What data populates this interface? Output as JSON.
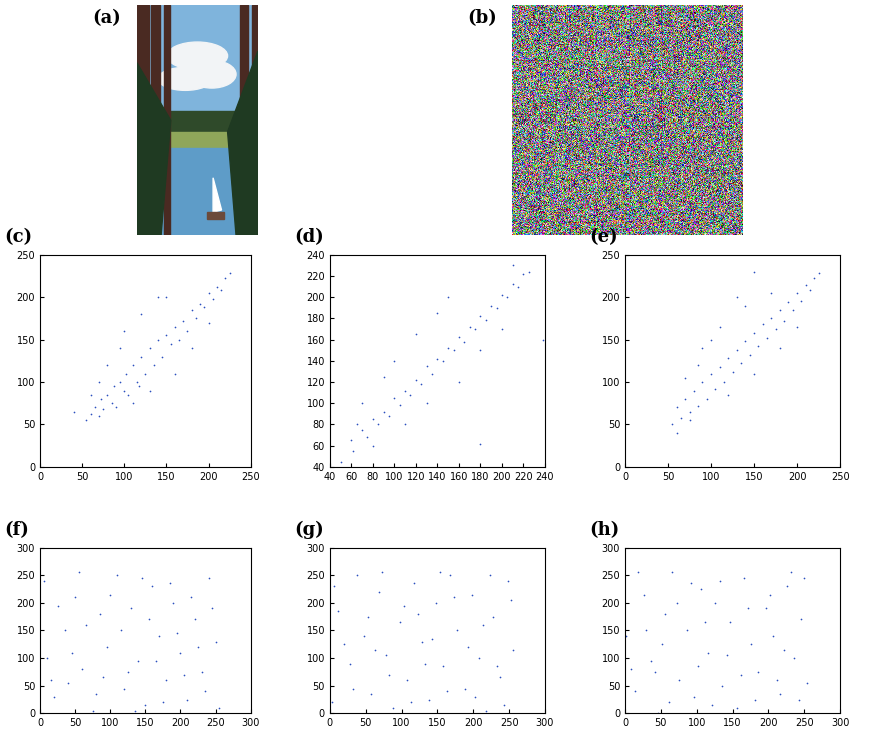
{
  "chart_data": [
    {
      "type": "photo",
      "title": "(a)"
    },
    {
      "type": "noise",
      "title": "(b)"
    },
    {
      "type": "scatter",
      "title": "(c)",
      "color": "#2b4fbf",
      "marker": "dot",
      "xlim": [
        0,
        250
      ],
      "ylim": [
        0,
        250
      ],
      "xticks": [
        0,
        50,
        100,
        150,
        200,
        250
      ],
      "yticks": [
        0,
        50,
        100,
        150,
        200,
        250
      ],
      "x": [
        60,
        65,
        70,
        72,
        75,
        80,
        85,
        88,
        90,
        95,
        100,
        102,
        105,
        110,
        115,
        118,
        120,
        125,
        130,
        135,
        140,
        145,
        150,
        155,
        160,
        165,
        170,
        175,
        180,
        185,
        190,
        195,
        200,
        205,
        210,
        215,
        220,
        225,
        80,
        95,
        120,
        150,
        130,
        160,
        180,
        110,
        70,
        55,
        140,
        200,
        100,
        60,
        40
      ],
      "values": [
        62,
        70,
        60,
        80,
        68,
        85,
        75,
        95,
        70,
        100,
        90,
        110,
        85,
        120,
        100,
        95,
        130,
        110,
        140,
        120,
        150,
        130,
        155,
        145,
        165,
        150,
        172,
        160,
        185,
        175,
        192,
        188,
        205,
        198,
        212,
        208,
        222,
        228,
        120,
        140,
        180,
        200,
        90,
        110,
        140,
        75,
        100,
        55,
        200,
        170,
        160,
        85,
        65
      ]
    },
    {
      "type": "scatter",
      "title": "(d)",
      "color": "#2b4fbf",
      "marker": "dot",
      "xlim": [
        40,
        240
      ],
      "ylim": [
        40,
        240
      ],
      "xticks": [
        40,
        60,
        80,
        100,
        120,
        140,
        160,
        180,
        200,
        220,
        240
      ],
      "yticks": [
        40,
        60,
        80,
        100,
        120,
        140,
        160,
        180,
        200,
        220,
        240
      ],
      "x": [
        50,
        60,
        62,
        70,
        75,
        80,
        85,
        90,
        95,
        100,
        105,
        110,
        115,
        120,
        125,
        130,
        135,
        140,
        145,
        150,
        155,
        160,
        165,
        170,
        175,
        180,
        185,
        190,
        195,
        200,
        205,
        210,
        215,
        220,
        225,
        100,
        120,
        90,
        150,
        160,
        180,
        130,
        70,
        110,
        200,
        210,
        140,
        238,
        180,
        80,
        65
      ],
      "values": [
        45,
        65,
        55,
        75,
        68,
        85,
        80,
        92,
        88,
        105,
        98,
        112,
        108,
        122,
        118,
        135,
        128,
        142,
        140,
        152,
        150,
        162,
        158,
        172,
        170,
        182,
        178,
        192,
        190,
        202,
        200,
        212,
        210,
        222,
        224,
        140,
        165,
        125,
        200,
        120,
        150,
        100,
        100,
        80,
        170,
        230,
        185,
        160,
        62,
        60,
        80
      ]
    },
    {
      "type": "scatter",
      "title": "(e)",
      "color": "#2b4fbf",
      "marker": "dot",
      "xlim": [
        0,
        250
      ],
      "ylim": [
        0,
        250
      ],
      "xticks": [
        0,
        50,
        100,
        150,
        200,
        250
      ],
      "yticks": [
        0,
        50,
        100,
        150,
        200,
        250
      ],
      "x": [
        55,
        60,
        65,
        70,
        75,
        80,
        85,
        90,
        95,
        100,
        105,
        110,
        115,
        120,
        125,
        130,
        135,
        140,
        145,
        150,
        155,
        160,
        165,
        170,
        175,
        180,
        185,
        190,
        195,
        200,
        205,
        210,
        215,
        220,
        225,
        90,
        110,
        130,
        150,
        120,
        150,
        180,
        70,
        60,
        100,
        200,
        170,
        85,
        75,
        140
      ],
      "values": [
        50,
        70,
        58,
        80,
        65,
        90,
        72,
        100,
        80,
        110,
        92,
        118,
        100,
        128,
        112,
        138,
        122,
        148,
        132,
        158,
        142,
        168,
        152,
        175,
        162,
        185,
        172,
        194,
        185,
        205,
        196,
        214,
        208,
        222,
        228,
        140,
        165,
        200,
        230,
        85,
        110,
        140,
        105,
        40,
        150,
        165,
        205,
        120,
        55,
        190
      ]
    },
    {
      "type": "scatter",
      "title": "(f)",
      "color": "#2b4fbf",
      "marker": "dot",
      "xlim": [
        0,
        300
      ],
      "ylim": [
        0,
        300
      ],
      "xticks": [
        0,
        50,
        100,
        150,
        200,
        250,
        300
      ],
      "yticks": [
        0,
        50,
        100,
        150,
        200,
        250,
        300
      ],
      "x": [
        5,
        20,
        35,
        50,
        60,
        75,
        85,
        95,
        110,
        120,
        130,
        140,
        150,
        160,
        170,
        180,
        190,
        200,
        210,
        220,
        230,
        240,
        250,
        255,
        10,
        25,
        40,
        55,
        65,
        80,
        100,
        115,
        125,
        135,
        145,
        155,
        165,
        175,
        185,
        195,
        205,
        215,
        225,
        235,
        245,
        15,
        45,
        90
      ],
      "values": [
        240,
        30,
        150,
        210,
        80,
        5,
        180,
        120,
        250,
        45,
        190,
        95,
        15,
        230,
        140,
        60,
        200,
        110,
        25,
        170,
        75,
        245,
        130,
        10,
        100,
        195,
        55,
        255,
        160,
        35,
        215,
        150,
        75,
        5,
        245,
        170,
        95,
        20,
        235,
        145,
        70,
        210,
        120,
        40,
        190,
        60,
        110,
        65
      ]
    },
    {
      "type": "scatter",
      "title": "(g)",
      "color": "#2b4fbf",
      "marker": "dot",
      "xlim": [
        0,
        300
      ],
      "ylim": [
        0,
        300
      ],
      "xticks": [
        0,
        50,
        100,
        150,
        200,
        250,
        300
      ],
      "yticks": [
        0,
        50,
        100,
        150,
        200,
        250,
        300
      ],
      "x": [
        3,
        12,
        28,
        38,
        48,
        58,
        68,
        78,
        88,
        98,
        108,
        118,
        128,
        138,
        148,
        158,
        168,
        178,
        188,
        198,
        208,
        218,
        228,
        238,
        248,
        255,
        20,
        33,
        53,
        73,
        83,
        103,
        113,
        123,
        133,
        153,
        163,
        173,
        193,
        203,
        213,
        223,
        233,
        243,
        252,
        6,
        63,
        143
      ],
      "values": [
        20,
        185,
        90,
        250,
        140,
        35,
        220,
        105,
        10,
        165,
        60,
        235,
        130,
        25,
        200,
        85,
        250,
        150,
        45,
        215,
        100,
        5,
        175,
        65,
        240,
        115,
        125,
        45,
        175,
        255,
        70,
        195,
        20,
        180,
        90,
        255,
        40,
        210,
        120,
        30,
        160,
        250,
        85,
        15,
        205,
        230,
        115,
        135
      ]
    },
    {
      "type": "scatter",
      "title": "(h)",
      "color": "#2b4fbf",
      "marker": "dot",
      "xlim": [
        0,
        300
      ],
      "ylim": [
        0,
        300
      ],
      "xticks": [
        0,
        50,
        100,
        150,
        200,
        250,
        300
      ],
      "yticks": [
        0,
        50,
        100,
        150,
        200,
        250,
        300
      ],
      "x": [
        2,
        14,
        26,
        36,
        46,
        56,
        66,
        76,
        86,
        96,
        106,
        116,
        126,
        136,
        146,
        156,
        166,
        176,
        186,
        196,
        206,
        216,
        226,
        236,
        246,
        254,
        18,
        30,
        42,
        62,
        72,
        92,
        102,
        122,
        132,
        142,
        162,
        172,
        182,
        202,
        212,
        222,
        232,
        242,
        250,
        8,
        52,
        112
      ],
      "values": [
        140,
        40,
        215,
        95,
        0,
        180,
        255,
        60,
        150,
        30,
        225,
        110,
        200,
        50,
        165,
        10,
        245,
        125,
        75,
        190,
        140,
        35,
        230,
        100,
        170,
        55,
        255,
        150,
        75,
        20,
        200,
        235,
        85,
        15,
        240,
        105,
        70,
        190,
        25,
        215,
        60,
        115,
        255,
        25,
        245,
        80,
        125,
        165
      ]
    }
  ]
}
